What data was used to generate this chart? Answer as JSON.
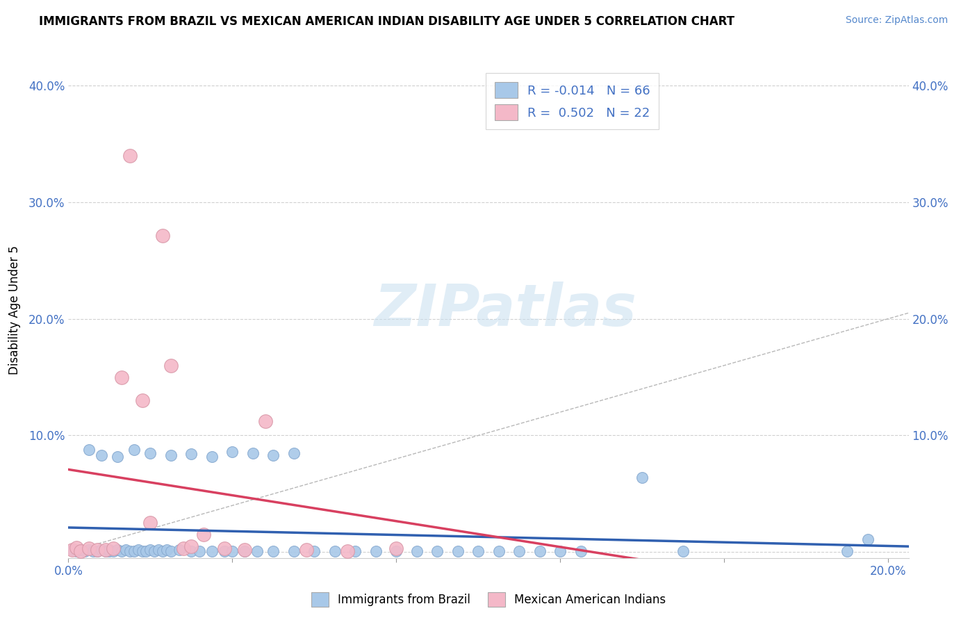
{
  "title": "IMMIGRANTS FROM BRAZIL VS MEXICAN AMERICAN INDIAN DISABILITY AGE UNDER 5 CORRELATION CHART",
  "source": "Source: ZipAtlas.com",
  "ylabel": "Disability Age Under 5",
  "xlim": [
    0.0,
    0.205
  ],
  "ylim": [
    -0.005,
    0.42
  ],
  "brazil_color": "#a8c8e8",
  "brazil_edge": "#88aad0",
  "mexico_color": "#f4b8c8",
  "mexico_edge": "#d898a8",
  "trend_brazil_color": "#3060b0",
  "trend_mexico_color": "#d84060",
  "trend_diag_color": "#b8b8b8",
  "legend_brazil_R": "-0.014",
  "legend_brazil_N": "66",
  "legend_mexico_R": "0.502",
  "legend_mexico_N": "22",
  "brazil_x": [
    0.001,
    0.002,
    0.003,
    0.004,
    0.005,
    0.006,
    0.007,
    0.008,
    0.009,
    0.01,
    0.01,
    0.011,
    0.012,
    0.013,
    0.014,
    0.015,
    0.016,
    0.017,
    0.018,
    0.019,
    0.02,
    0.021,
    0.022,
    0.023,
    0.024,
    0.025,
    0.027,
    0.03,
    0.032,
    0.035,
    0.038,
    0.04,
    0.043,
    0.046,
    0.05,
    0.055,
    0.06,
    0.065,
    0.07,
    0.075,
    0.08,
    0.085,
    0.09,
    0.095,
    0.1,
    0.105,
    0.11,
    0.115,
    0.12,
    0.125,
    0.005,
    0.008,
    0.012,
    0.016,
    0.02,
    0.025,
    0.03,
    0.035,
    0.04,
    0.045,
    0.05,
    0.055,
    0.14,
    0.15,
    0.19,
    0.195
  ],
  "brazil_y": [
    0.002,
    0.001,
    0.002,
    0.001,
    0.002,
    0.001,
    0.001,
    0.002,
    0.001,
    0.001,
    0.002,
    0.001,
    0.002,
    0.001,
    0.002,
    0.001,
    0.001,
    0.002,
    0.001,
    0.001,
    0.002,
    0.001,
    0.002,
    0.001,
    0.002,
    0.001,
    0.002,
    0.001,
    0.001,
    0.001,
    0.001,
    0.001,
    0.001,
    0.001,
    0.001,
    0.001,
    0.001,
    0.001,
    0.001,
    0.001,
    0.001,
    0.001,
    0.001,
    0.001,
    0.001,
    0.001,
    0.001,
    0.001,
    0.001,
    0.001,
    0.088,
    0.083,
    0.082,
    0.088,
    0.085,
    0.083,
    0.084,
    0.082,
    0.086,
    0.085,
    0.083,
    0.085,
    0.064,
    0.001,
    0.001,
    0.011
  ],
  "mexico_x": [
    0.001,
    0.002,
    0.003,
    0.005,
    0.007,
    0.009,
    0.011,
    0.013,
    0.015,
    0.018,
    0.02,
    0.023,
    0.025,
    0.028,
    0.03,
    0.033,
    0.038,
    0.043,
    0.048,
    0.058,
    0.068,
    0.08
  ],
  "mexico_y": [
    0.002,
    0.004,
    0.001,
    0.003,
    0.002,
    0.002,
    0.003,
    0.15,
    0.34,
    0.13,
    0.025,
    0.271,
    0.16,
    0.003,
    0.005,
    0.015,
    0.003,
    0.002,
    0.112,
    0.002,
    0.001,
    0.003
  ]
}
